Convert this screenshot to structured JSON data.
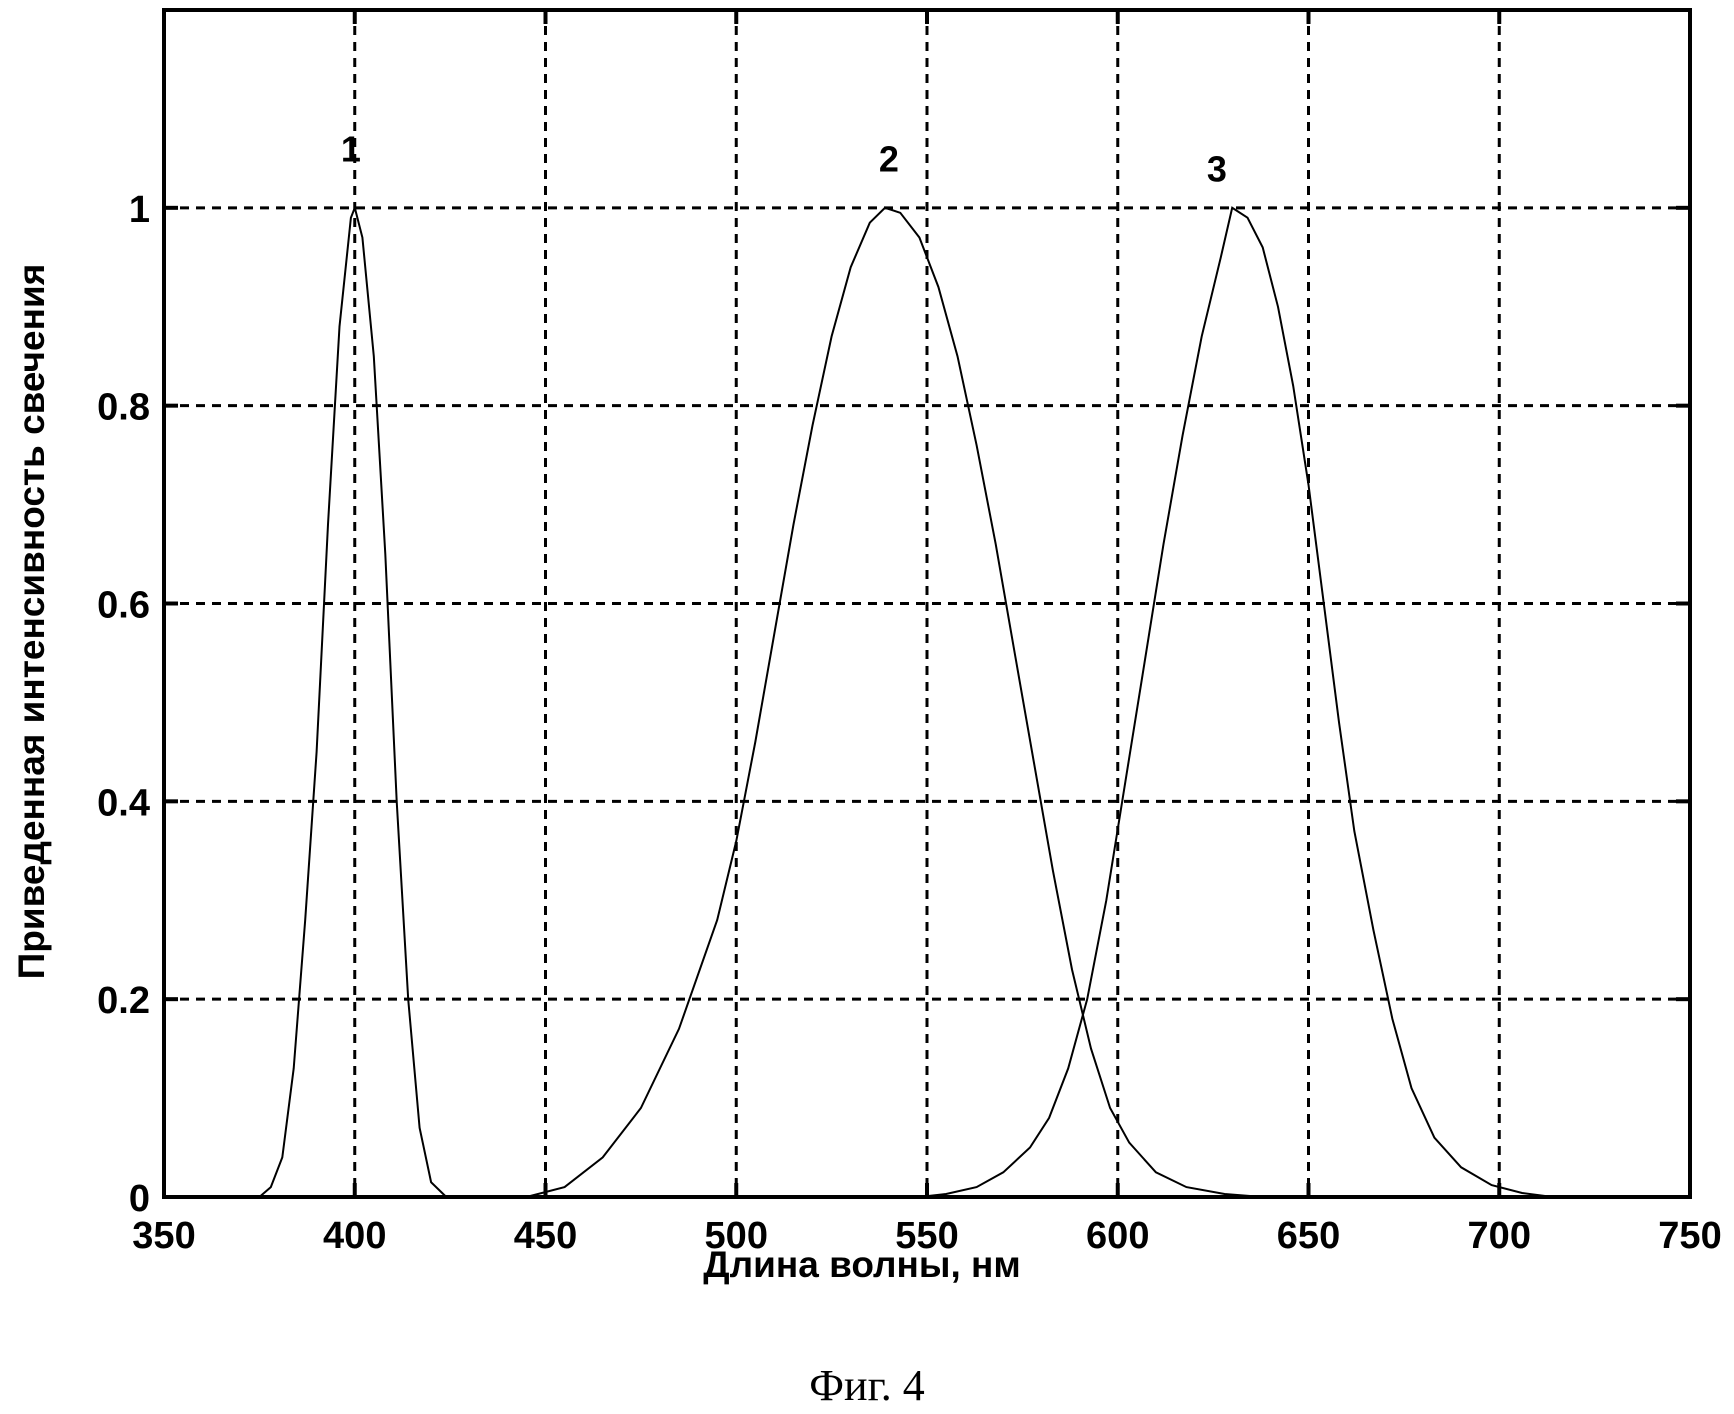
{
  "chart_data": {
    "type": "line",
    "title": "",
    "xlabel": "Длина волны, нм",
    "ylabel": "Приведенная интенсивность свечения",
    "xlim": [
      350,
      750
    ],
    "ylim": [
      0,
      1.2
    ],
    "grid": true,
    "x_ticks": [
      350,
      400,
      450,
      500,
      550,
      600,
      650,
      700,
      750
    ],
    "x_tick_labels": [
      "350",
      "400",
      "450",
      "500",
      "550",
      "600",
      "650",
      "700",
      "750"
    ],
    "y_ticks": [
      0,
      0.2,
      0.4,
      0.6,
      0.8,
      1
    ],
    "y_tick_labels": [
      "0",
      "0.2",
      "0.4",
      "0.6",
      "0.8",
      "1"
    ],
    "series": [
      {
        "label": "1",
        "label_position": [
          399,
          1.06
        ],
        "points": [
          [
            375,
            0
          ],
          [
            378,
            0.01
          ],
          [
            381,
            0.04
          ],
          [
            384,
            0.13
          ],
          [
            387,
            0.28
          ],
          [
            390,
            0.45
          ],
          [
            393,
            0.68
          ],
          [
            396,
            0.88
          ],
          [
            399,
            0.99
          ],
          [
            400,
            1.0
          ],
          [
            402,
            0.97
          ],
          [
            405,
            0.85
          ],
          [
            408,
            0.65
          ],
          [
            411,
            0.4
          ],
          [
            414,
            0.2
          ],
          [
            417,
            0.07
          ],
          [
            420,
            0.015
          ],
          [
            424,
            0
          ]
        ]
      },
      {
        "label": "2",
        "label_position": [
          540,
          1.05
        ],
        "points": [
          [
            445,
            0
          ],
          [
            455,
            0.01
          ],
          [
            465,
            0.04
          ],
          [
            475,
            0.09
          ],
          [
            485,
            0.17
          ],
          [
            495,
            0.28
          ],
          [
            500,
            0.36
          ],
          [
            505,
            0.46
          ],
          [
            510,
            0.57
          ],
          [
            515,
            0.68
          ],
          [
            520,
            0.78
          ],
          [
            525,
            0.87
          ],
          [
            530,
            0.94
          ],
          [
            535,
            0.985
          ],
          [
            539,
            1.0
          ],
          [
            543,
            0.995
          ],
          [
            548,
            0.97
          ],
          [
            553,
            0.92
          ],
          [
            558,
            0.85
          ],
          [
            563,
            0.76
          ],
          [
            568,
            0.66
          ],
          [
            573,
            0.55
          ],
          [
            578,
            0.44
          ],
          [
            583,
            0.33
          ],
          [
            588,
            0.23
          ],
          [
            593,
            0.15
          ],
          [
            598,
            0.09
          ],
          [
            603,
            0.055
          ],
          [
            610,
            0.025
          ],
          [
            618,
            0.01
          ],
          [
            628,
            0.003
          ],
          [
            638,
            0
          ]
        ]
      },
      {
        "label": "3",
        "label_position": [
          626,
          1.04
        ],
        "points": [
          [
            548,
            0
          ],
          [
            555,
            0.003
          ],
          [
            563,
            0.01
          ],
          [
            570,
            0.025
          ],
          [
            577,
            0.05
          ],
          [
            582,
            0.08
          ],
          [
            587,
            0.13
          ],
          [
            592,
            0.2
          ],
          [
            597,
            0.3
          ],
          [
            602,
            0.42
          ],
          [
            607,
            0.54
          ],
          [
            612,
            0.66
          ],
          [
            617,
            0.77
          ],
          [
            622,
            0.87
          ],
          [
            627,
            0.95
          ],
          [
            630,
            1.0
          ],
          [
            634,
            0.99
          ],
          [
            638,
            0.96
          ],
          [
            642,
            0.9
          ],
          [
            646,
            0.82
          ],
          [
            650,
            0.72
          ],
          [
            654,
            0.6
          ],
          [
            658,
            0.48
          ],
          [
            662,
            0.37
          ],
          [
            667,
            0.27
          ],
          [
            672,
            0.18
          ],
          [
            677,
            0.11
          ],
          [
            683,
            0.06
          ],
          [
            690,
            0.03
          ],
          [
            698,
            0.012
          ],
          [
            706,
            0.004
          ],
          [
            714,
            0
          ]
        ]
      }
    ]
  },
  "caption": "Фиг. 4"
}
